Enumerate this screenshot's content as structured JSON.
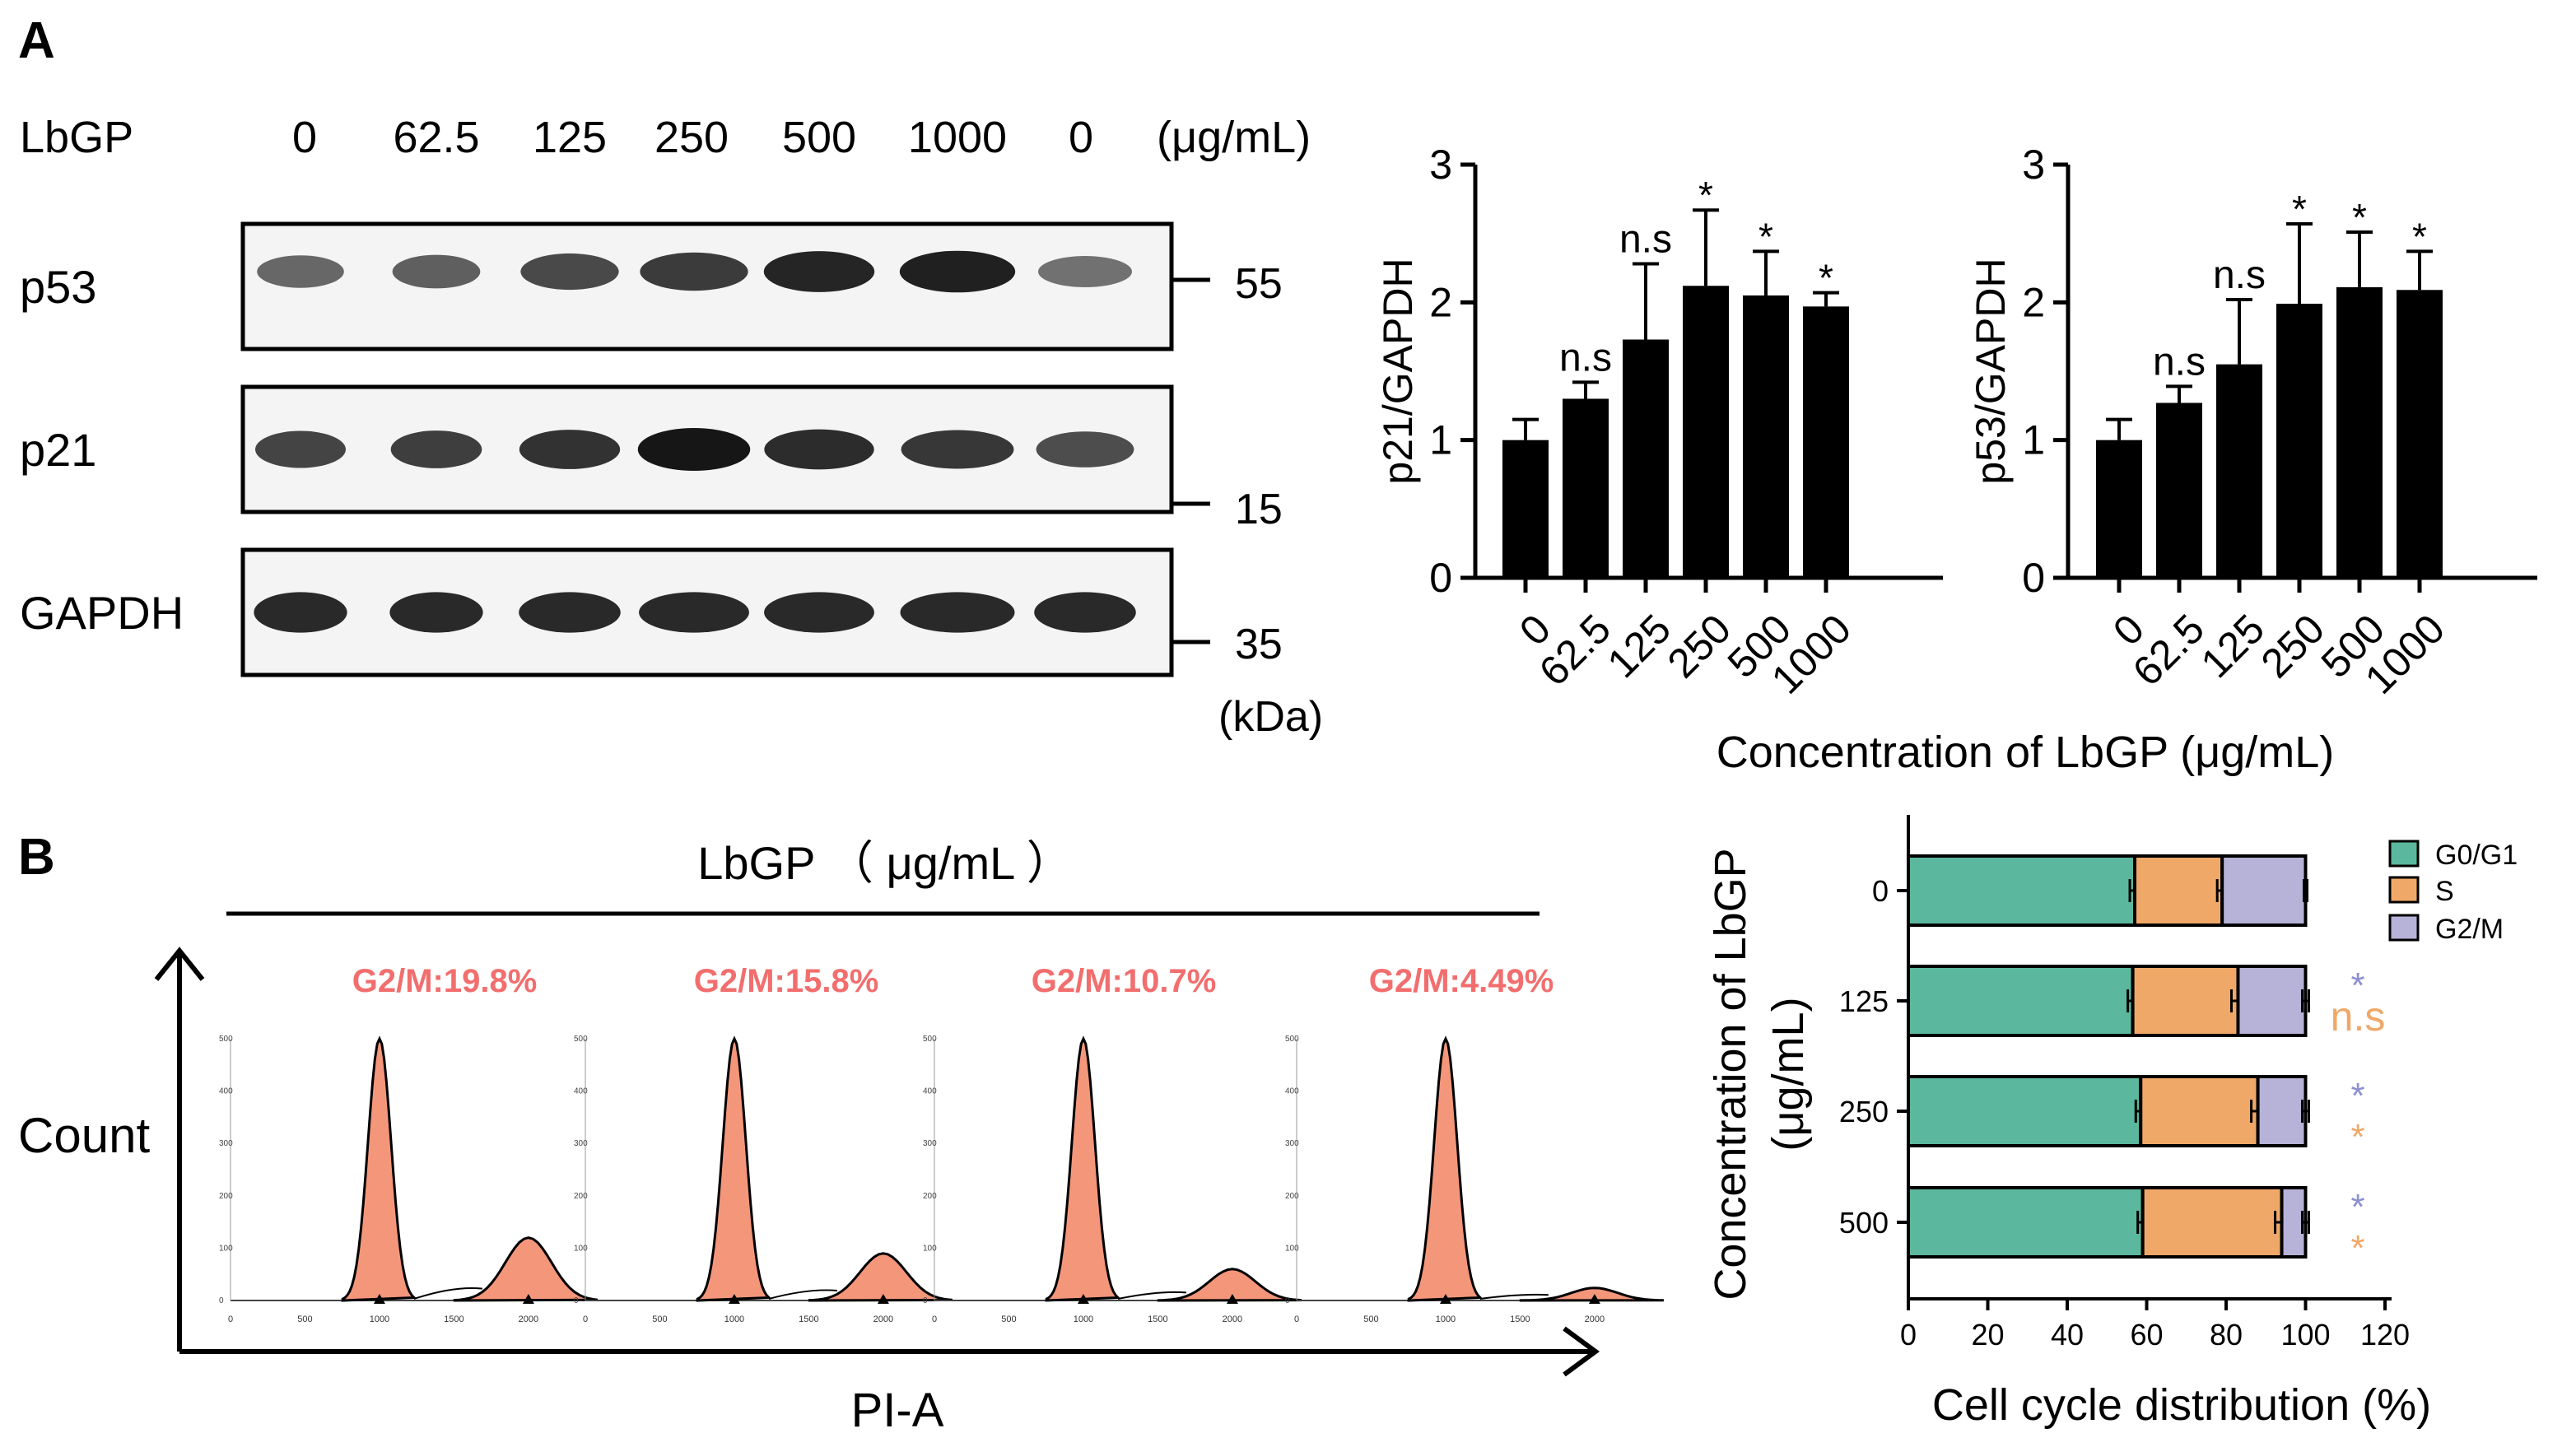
{
  "panel_a": {
    "label": "A",
    "treatment_label": "LbGP",
    "lanes": [
      "0",
      "62.5",
      "125",
      "250",
      "500",
      "1000",
      "0"
    ],
    "unit": "(μg/mL)",
    "blots": [
      {
        "name": "p53",
        "intensity": [
          0.55,
          0.6,
          0.72,
          0.8,
          0.92,
          0.95,
          0.5
        ]
      },
      {
        "name": "p21",
        "intensity": [
          0.75,
          0.78,
          0.85,
          1.0,
          0.88,
          0.82,
          0.7
        ]
      },
      {
        "name": "GAPDH",
        "intensity": [
          0.9,
          0.9,
          0.9,
          0.9,
          0.9,
          0.9,
          0.9
        ]
      }
    ],
    "markers": [
      "55",
      "15",
      "35"
    ],
    "marker_unit": "(kDa)",
    "shared_xlabel": "Concentration of LbGP (μg/mL)"
  },
  "panel_b": {
    "label": "B",
    "header": "LbGP （ μg/mL ）",
    "yaxis_label": "Count",
    "xaxis_label": "PI-A",
    "histograms": [
      {
        "label": "G2/M:19.8%",
        "g1_peak": 1.0,
        "g2_peak": 0.2
      },
      {
        "label": "G2/M:15.8%",
        "g1_peak": 1.0,
        "g2_peak": 0.15
      },
      {
        "label": "G2/M:10.7%",
        "g1_peak": 1.0,
        "g2_peak": 0.1
      },
      {
        "label": "G2/M:4.49%",
        "g1_peak": 1.0,
        "g2_peak": 0.04
      }
    ],
    "hist_x_ticks": [
      "0",
      "500",
      "1000",
      "1500",
      "2000"
    ],
    "hist_y_ticks": [
      "0",
      "100",
      "200",
      "300",
      "400",
      "500"
    ],
    "peak_color": "#F4967A"
  },
  "chart_data": [
    {
      "type": "bar",
      "title": "",
      "categories": [
        "0",
        "62.5",
        "125",
        "250",
        "500",
        "1000"
      ],
      "values": [
        1.0,
        1.3,
        1.73,
        2.12,
        2.05,
        1.97
      ],
      "errors": [
        0.15,
        0.12,
        0.55,
        0.55,
        0.32,
        0.1
      ],
      "annotations": [
        "",
        "n.s",
        "n.s",
        "*",
        "*",
        "*"
      ],
      "xlabel": "Concentration of LbGP (μg/mL)",
      "ylabel": "p21/GAPDH",
      "ylim": [
        0,
        3
      ],
      "yticks": [
        "0",
        "1",
        "2",
        "3"
      ]
    },
    {
      "type": "bar",
      "title": "",
      "categories": [
        "0",
        "62.5",
        "125",
        "250",
        "500",
        "1000"
      ],
      "values": [
        1.0,
        1.27,
        1.55,
        1.99,
        2.11,
        2.09
      ],
      "errors": [
        0.15,
        0.12,
        0.47,
        0.58,
        0.4,
        0.28
      ],
      "annotations": [
        "",
        "n.s",
        "n.s",
        "*",
        "*",
        "*"
      ],
      "xlabel": "Concentration of LbGP (μg/mL)",
      "ylabel": "p53/GAPDH",
      "ylim": [
        0,
        3
      ],
      "yticks": [
        "0",
        "1",
        "2",
        "3"
      ]
    },
    {
      "type": "bar",
      "stacked": true,
      "orientation": "horizontal",
      "title": "",
      "categories": [
        "0",
        "125",
        "250",
        "500"
      ],
      "series": [
        {
          "name": "G0/G1",
          "color": "#5BB89E",
          "values": [
            57,
            56.5,
            58.5,
            59
          ],
          "errors": [
            1.5,
            1.5,
            1.5,
            1.5
          ]
        },
        {
          "name": "S",
          "color": "#F0A868",
          "values": [
            22,
            26.5,
            29.5,
            35
          ],
          "errors": [
            1.5,
            2,
            2,
            2
          ]
        },
        {
          "name": "G2/M",
          "color": "#B6B2D8",
          "values": [
            21,
            17,
            12,
            6
          ],
          "errors": [
            0.5,
            1,
            1,
            1
          ]
        }
      ],
      "annotations": [
        {
          "category": "0",
          "g2m": "",
          "s": ""
        },
        {
          "category": "125",
          "g2m": "*",
          "s": "n.s"
        },
        {
          "category": "250",
          "g2m": "*",
          "s": "*"
        },
        {
          "category": "500",
          "g2m": "*",
          "s": "*"
        }
      ],
      "xlabel": "Cell cycle distribution (%)",
      "ylabel": "Concentration of LbGP\n(μg/mL)",
      "ylabel_line1": "Concentration of LbGP",
      "ylabel_line2": "(μg/mL)",
      "xlim": [
        0,
        120
      ],
      "xticks": [
        "0",
        "20",
        "40",
        "60",
        "80",
        "100",
        "120"
      ],
      "legend": "top-right",
      "annot_colors": {
        "g2m": "#8C8FD0",
        "s": "#F0A868"
      }
    }
  ]
}
